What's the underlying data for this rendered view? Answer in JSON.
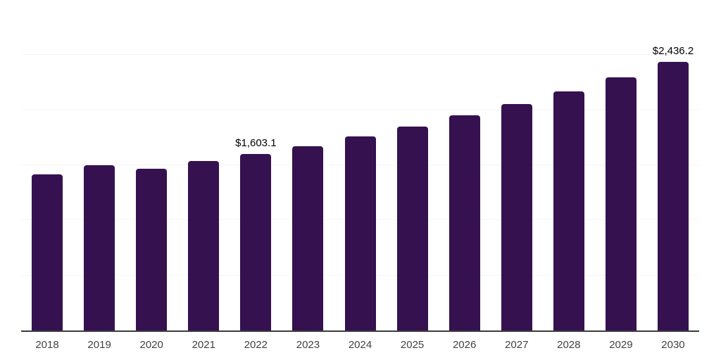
{
  "background_color": "#ffffff",
  "chart_data": {
    "type": "bar",
    "title": "",
    "xlabel": "",
    "ylabel": "",
    "categories": [
      "2018",
      "2019",
      "2020",
      "2021",
      "2022",
      "2023",
      "2024",
      "2025",
      "2026",
      "2027",
      "2028",
      "2029",
      "2030"
    ],
    "values": [
      1416.0,
      1503.0,
      1467.0,
      1537.0,
      1603.1,
      1671.0,
      1762.0,
      1852.0,
      1952.0,
      2053.0,
      2172.0,
      2298.0,
      2436.2
    ],
    "data_labels": [
      null,
      null,
      null,
      null,
      "$1,603.1",
      null,
      null,
      null,
      null,
      null,
      null,
      null,
      "$2,436.2"
    ],
    "ylim": [
      0,
      3000
    ],
    "grid": true,
    "gridline_values": [
      500,
      1000,
      1500,
      2000,
      2500,
      3000
    ],
    "y_axis_tick_labels_visible": false,
    "legend": "none",
    "bar_color": "#351150",
    "axis_line_color": "#3c3c3c",
    "gridline_color": "#f5f5f5",
    "tick_label_color": "#424242",
    "data_label_color": "#000000"
  }
}
